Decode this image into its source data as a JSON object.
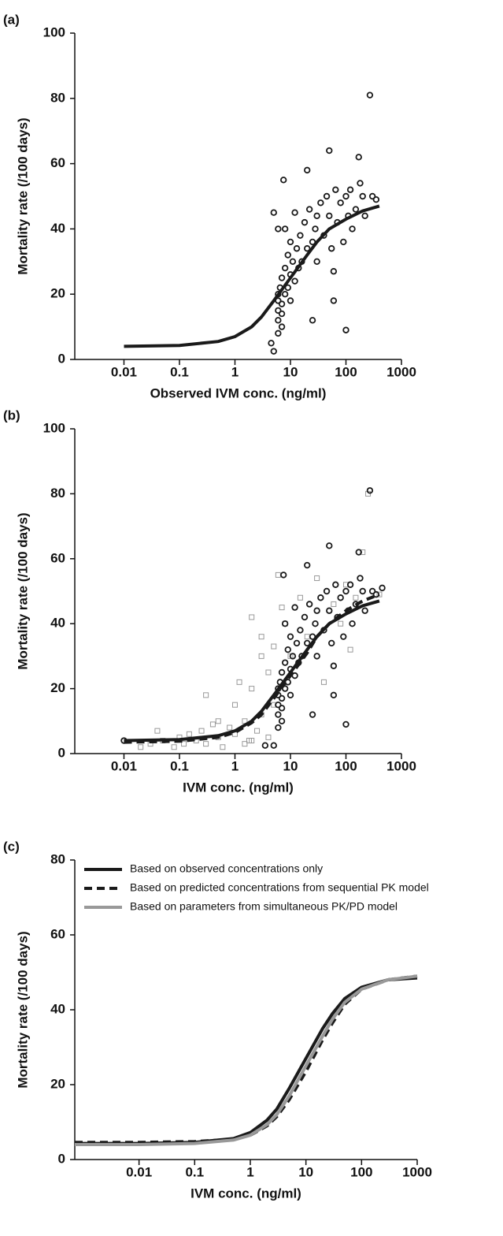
{
  "chart_data": [
    {
      "type": "scatter",
      "panel_label": "(a)",
      "x_label": "Observed IVM conc. (ng/ml)",
      "y_label": "Mortality rate (/100 days)",
      "xscale": "log",
      "xlim": [
        0.0013,
        1000
      ],
      "xticks": [
        0.01,
        0.1,
        1,
        10,
        100,
        1000
      ],
      "ylim": [
        0,
        100
      ],
      "yticks": [
        0,
        20,
        40,
        60,
        80,
        100
      ],
      "series": [
        {
          "marker": "circle",
          "color": "#1a1a1a",
          "x": [
            5,
            6,
            6,
            6,
            6,
            6,
            6.5,
            7,
            7,
            7,
            7,
            7.5,
            8,
            8,
            8,
            9,
            9,
            10,
            10,
            10,
            11,
            12,
            12,
            13,
            14,
            15,
            16,
            18,
            20,
            20,
            22,
            25,
            25,
            28,
            30,
            30,
            35,
            40,
            45,
            50,
            50,
            55,
            60,
            60,
            65,
            70,
            80,
            90,
            100,
            100,
            110,
            120,
            130,
            150,
            170,
            180,
            200,
            220,
            270,
            300,
            350,
            5,
            6,
            4.5
          ],
          "values": [
            2.5,
            8,
            12,
            15,
            18,
            20,
            22,
            10,
            14,
            17,
            25,
            55,
            20,
            28,
            40,
            32,
            22,
            18,
            26,
            36,
            30,
            45,
            24,
            34,
            28,
            38,
            30,
            42,
            58,
            34,
            46,
            36,
            12,
            40,
            44,
            30,
            48,
            38,
            50,
            64,
            44,
            34,
            27,
            18,
            52,
            42,
            48,
            36,
            50,
            9,
            44,
            52,
            40,
            46,
            62,
            54,
            50,
            44,
            81,
            50,
            49,
            45,
            40,
            5
          ]
        },
        {
          "line": "solid",
          "color": "#1a1a1a",
          "x": [
            0.01,
            0.1,
            0.5,
            1,
            2,
            3,
            5,
            10,
            20,
            30,
            50,
            100,
            200,
            400
          ],
          "values": [
            4,
            4.3,
            5.5,
            7,
            10,
            13,
            18,
            25,
            32,
            36,
            40,
            43,
            45.5,
            47
          ]
        }
      ]
    },
    {
      "type": "scatter",
      "panel_label": "(b)",
      "x_label": "IVM conc. (ng/ml)",
      "y_label": "Mortality rate (/100 days)",
      "xscale": "log",
      "xlim": [
        0.0013,
        1000
      ],
      "xticks": [
        0.01,
        0.1,
        1,
        10,
        100,
        1000
      ],
      "ylim": [
        0,
        100
      ],
      "yticks": [
        0,
        20,
        40,
        60,
        80,
        100
      ],
      "series": [
        {
          "marker": "square",
          "color": "#999999",
          "x": [
            0.02,
            0.03,
            0.04,
            0.05,
            0.08,
            0.1,
            0.12,
            0.15,
            0.2,
            0.25,
            0.3,
            0.3,
            0.4,
            0.5,
            0.5,
            0.6,
            0.8,
            1,
            1,
            1.2,
            1.5,
            1.5,
            2,
            2,
            2,
            2.5,
            3,
            3,
            3,
            4,
            4,
            5,
            5,
            6,
            7,
            8,
            10,
            15,
            20,
            30,
            40,
            60,
            80,
            100,
            120,
            150,
            200,
            250,
            400,
            1.8
          ],
          "values": [
            2,
            3,
            7,
            4,
            2,
            5,
            3,
            6,
            4,
            7,
            18,
            3,
            9,
            10,
            5,
            2,
            8,
            6,
            15,
            22,
            10,
            3,
            4,
            20,
            42,
            7,
            12,
            30,
            36,
            5,
            25,
            15,
            33,
            55,
            45,
            40,
            30,
            48,
            36,
            54,
            22,
            46,
            40,
            52,
            32,
            48,
            62,
            80,
            49,
            4
          ]
        },
        {
          "marker": "circle",
          "color": "#1a1a1a",
          "x": [
            0.01,
            3.5,
            5,
            6,
            6,
            6,
            6,
            6,
            6.5,
            7,
            7,
            7,
            7,
            7.5,
            8,
            8,
            8,
            9,
            9,
            10,
            10,
            10,
            11,
            12,
            12,
            13,
            14,
            15,
            16,
            18,
            20,
            20,
            22,
            25,
            25,
            28,
            30,
            30,
            35,
            40,
            45,
            50,
            50,
            55,
            60,
            60,
            65,
            70,
            80,
            90,
            100,
            100,
            110,
            120,
            130,
            150,
            170,
            180,
            200,
            220,
            270,
            300,
            350,
            450
          ],
          "values": [
            4,
            2.5,
            2.5,
            8,
            12,
            15,
            18,
            20,
            22,
            10,
            14,
            17,
            25,
            55,
            20,
            28,
            40,
            32,
            22,
            18,
            26,
            36,
            30,
            45,
            24,
            34,
            28,
            38,
            30,
            42,
            58,
            34,
            46,
            36,
            12,
            40,
            44,
            30,
            48,
            38,
            50,
            64,
            44,
            34,
            27,
            18,
            52,
            42,
            48,
            36,
            50,
            9,
            44,
            52,
            40,
            46,
            62,
            54,
            50,
            44,
            81,
            50,
            49,
            51
          ]
        },
        {
          "line": "solid",
          "color": "#1a1a1a",
          "x": [
            0.01,
            0.1,
            0.5,
            1,
            2,
            3,
            5,
            10,
            20,
            30,
            50,
            100,
            200,
            400
          ],
          "values": [
            4,
            4.3,
            5.5,
            7,
            10,
            13,
            18,
            25,
            32,
            36,
            40,
            43,
            45.5,
            47
          ]
        },
        {
          "line": "dashed",
          "color": "#1a1a1a",
          "x": [
            0.01,
            0.1,
            0.5,
            1,
            2,
            3,
            5,
            10,
            20,
            30,
            50,
            100,
            200,
            400
          ],
          "values": [
            3.5,
            3.8,
            5,
            6.5,
            9.5,
            12,
            17,
            24,
            31,
            36,
            40,
            44,
            47,
            49
          ]
        }
      ]
    },
    {
      "type": "line",
      "panel_label": "(c)",
      "x_label": "IVM conc. (ng/ml)",
      "y_label": "Mortality rate (/100 days)",
      "xscale": "log",
      "xlim": [
        0.0007,
        1000
      ],
      "xticks": [
        0.01,
        0.1,
        1,
        10,
        100,
        1000
      ],
      "ylim": [
        0,
        80
      ],
      "yticks": [
        0,
        20,
        40,
        60,
        80
      ],
      "series": [
        {
          "name": "Based on observed concentrations only",
          "line": "solid",
          "color": "#1a1a1a",
          "x": [
            0.0007,
            0.01,
            0.1,
            0.5,
            1,
            2,
            3,
            5,
            10,
            20,
            30,
            50,
            100,
            300,
            1000
          ],
          "values": [
            4.3,
            4.3,
            4.6,
            5.6,
            7.2,
            10.5,
            13.5,
            19,
            27,
            35,
            39,
            43,
            46,
            48,
            48.5
          ]
        },
        {
          "name": "Based on predicted concentrations from sequential PK model",
          "line": "dashed",
          "color": "#1a1a1a",
          "x": [
            0.0007,
            0.01,
            0.1,
            0.5,
            1,
            2,
            3,
            5,
            10,
            20,
            30,
            50,
            100,
            300,
            1000
          ],
          "values": [
            4.6,
            4.6,
            4.8,
            5.4,
            6.5,
            9,
            11.5,
            16,
            23.5,
            32,
            36.5,
            41.5,
            45.5,
            48,
            49
          ]
        },
        {
          "name": "Based on parameters from simultaneous PK/PD model",
          "line": "solid",
          "color": "#999999",
          "x": [
            0.0007,
            0.01,
            0.1,
            0.5,
            1,
            2,
            3,
            5,
            10,
            20,
            30,
            50,
            100,
            300,
            1000
          ],
          "values": [
            4,
            4,
            4.3,
            5.2,
            6.5,
            9.3,
            12,
            17,
            25,
            33,
            37.5,
            42,
            45.5,
            48,
            49
          ]
        }
      ]
    }
  ]
}
